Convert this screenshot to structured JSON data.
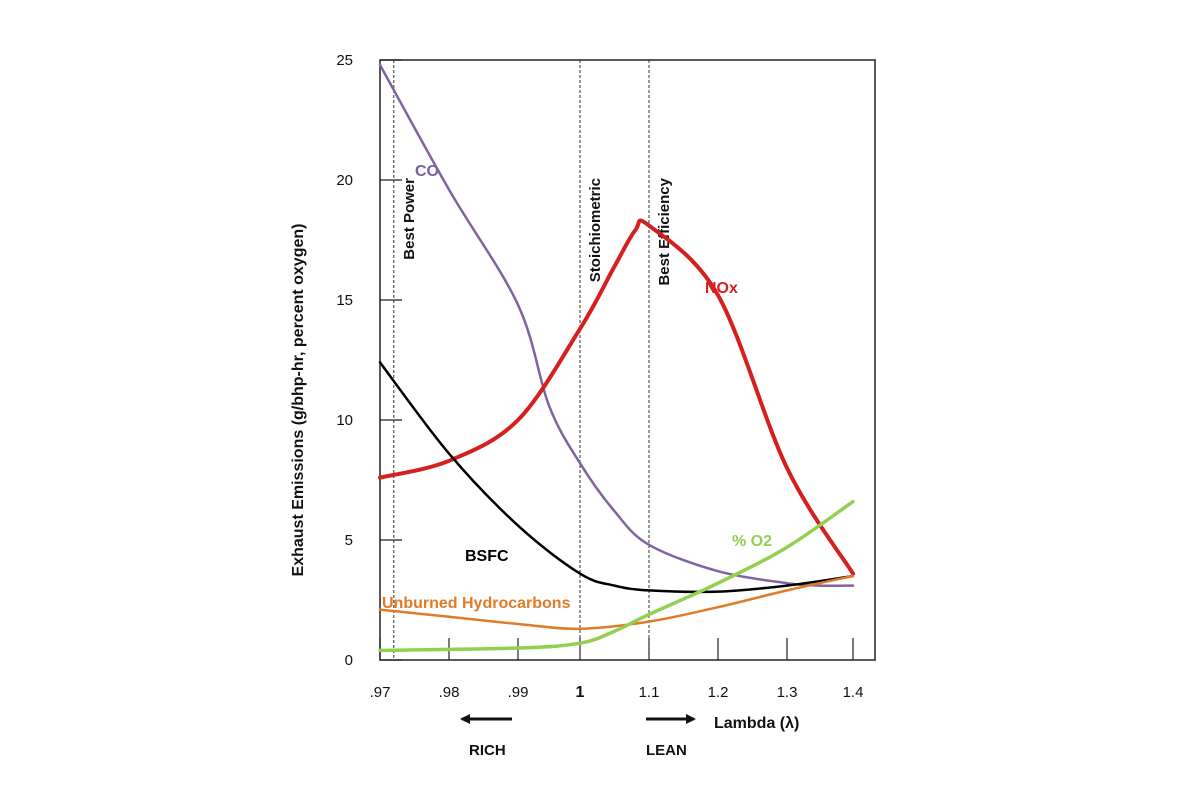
{
  "chart_data": {
    "type": "line",
    "xlabel": "Lambda  (λ)",
    "ylabel": "Exhaust Emissions (g/bhp-hr, percent oxygen)",
    "x_ticks": [
      ".97",
      ".98",
      ".99",
      "1",
      "1.1",
      "1.2",
      "1.3",
      "1.4"
    ],
    "y_ticks": [
      "0",
      "5",
      "10",
      "15",
      "20",
      "25"
    ],
    "ylim": [
      0,
      25
    ],
    "grid": false,
    "reference_lines": [
      {
        "label": "Best Power",
        "x": 0.972
      },
      {
        "label": "Stoichiometric",
        "x": 1.0
      },
      {
        "label": "Best Efficiency",
        "x": 1.1
      }
    ],
    "direction_labels": {
      "rich": "RICH",
      "lean": "LEAN"
    },
    "series": [
      {
        "name": "CO",
        "color": "#8064a2",
        "points": [
          [
            0.97,
            24.8
          ],
          [
            0.98,
            19.6
          ],
          [
            0.99,
            14.8
          ],
          [
            0.995,
            10.6
          ],
          [
            1.0,
            8.2
          ],
          [
            1.05,
            6.2
          ],
          [
            1.1,
            4.8
          ],
          [
            1.2,
            3.7
          ],
          [
            1.3,
            3.2
          ],
          [
            1.35,
            3.1
          ],
          [
            1.4,
            3.1
          ]
        ]
      },
      {
        "name": "NOx",
        "color": "#d62020",
        "points": [
          [
            0.97,
            7.6
          ],
          [
            0.98,
            8.3
          ],
          [
            0.99,
            10.0
          ],
          [
            1.0,
            13.8
          ],
          [
            1.05,
            16.4
          ],
          [
            1.08,
            17.9
          ],
          [
            1.1,
            18.1
          ],
          [
            1.2,
            15.2
          ],
          [
            1.3,
            8.0
          ],
          [
            1.4,
            3.6
          ]
        ]
      },
      {
        "name": "BSFC",
        "color": "#000000",
        "points": [
          [
            0.97,
            12.4
          ],
          [
            0.98,
            8.6
          ],
          [
            0.99,
            5.6
          ],
          [
            1.0,
            3.6
          ],
          [
            1.05,
            3.1
          ],
          [
            1.1,
            2.9
          ],
          [
            1.2,
            2.85
          ],
          [
            1.3,
            3.1
          ],
          [
            1.4,
            3.5
          ]
        ]
      },
      {
        "name": "Unburned Hydrocarbons",
        "color": "#e07b28",
        "points": [
          [
            0.97,
            2.1
          ],
          [
            0.98,
            1.8
          ],
          [
            0.99,
            1.5
          ],
          [
            1.0,
            1.3
          ],
          [
            1.1,
            1.6
          ],
          [
            1.2,
            2.2
          ],
          [
            1.3,
            2.9
          ],
          [
            1.4,
            3.5
          ]
        ]
      },
      {
        "name": "% O2",
        "color": "#92d050",
        "points": [
          [
            0.97,
            0.4
          ],
          [
            0.99,
            0.5
          ],
          [
            1.0,
            0.7
          ],
          [
            1.05,
            1.2
          ],
          [
            1.1,
            1.9
          ],
          [
            1.2,
            3.2
          ],
          [
            1.3,
            4.7
          ],
          [
            1.4,
            6.6
          ]
        ]
      }
    ]
  }
}
